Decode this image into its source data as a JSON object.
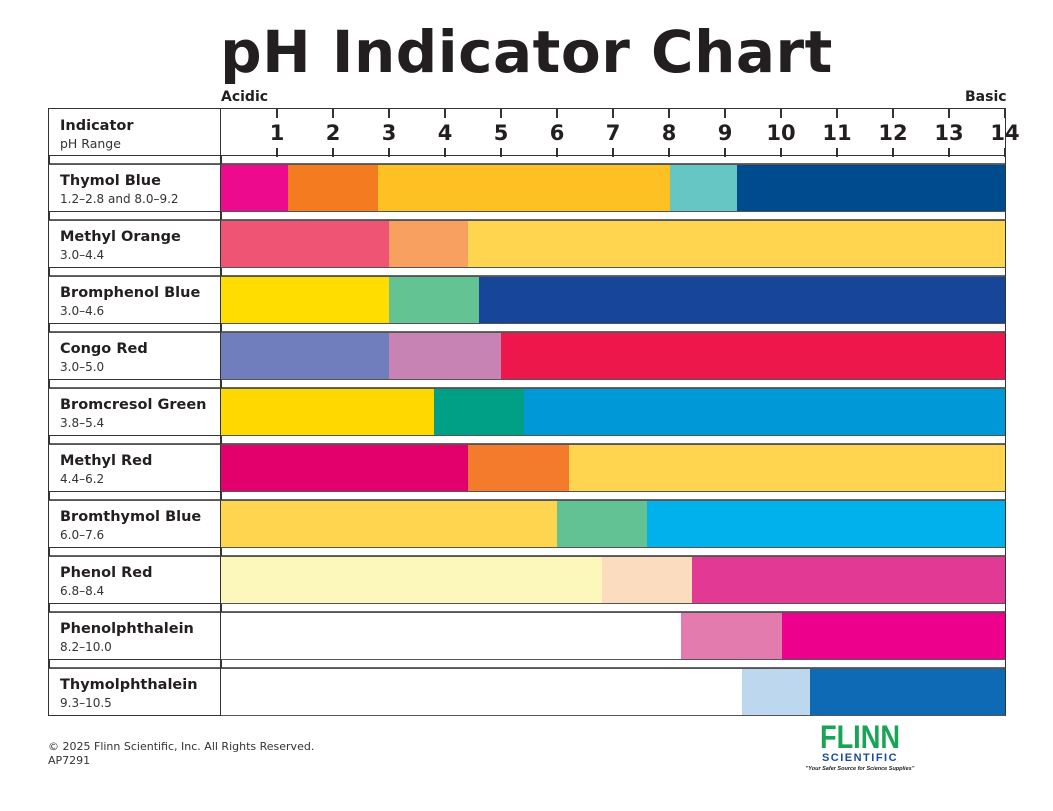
{
  "title": "pH Indicator Chart",
  "scale": {
    "left_label": "Acidic",
    "right_label": "Basic",
    "ticks": [
      "1",
      "2",
      "3",
      "4",
      "5",
      "6",
      "7",
      "8",
      "9",
      "10",
      "11",
      "12",
      "13",
      "14"
    ]
  },
  "header": {
    "indicator_label": "Indicator",
    "range_label": "pH Range"
  },
  "indicators": [
    {
      "name": "Thymol Blue",
      "range": "1.2–2.8 and 8.0–9.2"
    },
    {
      "name": "Methyl Orange",
      "range": "3.0–4.4"
    },
    {
      "name": "Bromphenol Blue",
      "range": "3.0–4.6"
    },
    {
      "name": "Congo Red",
      "range": "3.0–5.0"
    },
    {
      "name": "Bromcresol Green",
      "range": "3.8–5.4"
    },
    {
      "name": "Methyl Red",
      "range": "4.4–6.2"
    },
    {
      "name": "Bromthymol Blue",
      "range": "6.0–7.6"
    },
    {
      "name": "Phenol Red",
      "range": "6.8–8.4"
    },
    {
      "name": "Phenolphthalein",
      "range": "8.2–10.0"
    },
    {
      "name": "Thymolphthalein",
      "range": "9.3–10.5"
    }
  ],
  "footer": {
    "copyright": "© 2025 Flinn Scientific, Inc. All Rights Reserved.",
    "code": "AP7291"
  },
  "logo": {
    "name": "FLINN",
    "sub": "SCIENTIFIC",
    "tagline": "\"Your Safer Source for Science Supplies\""
  },
  "chart_data": {
    "type": "table",
    "title": "pH Indicator Chart",
    "xlabel": "pH",
    "xlim": [
      0,
      14
    ],
    "x_ticks": [
      1,
      2,
      3,
      4,
      5,
      6,
      7,
      8,
      9,
      10,
      11,
      12,
      13,
      14
    ],
    "axis_end_labels": {
      "left": "Acidic",
      "right": "Basic"
    },
    "rows": [
      {
        "indicator": "Thymol Blue",
        "range": "1.2–2.8 and 8.0–9.2",
        "segments": [
          {
            "from": 0,
            "to": 1.2,
            "color": "#EE0A8C"
          },
          {
            "from": 1.2,
            "to": 2.8,
            "color": "#F47B20"
          },
          {
            "from": 2.8,
            "to": 8.0,
            "color": "#FEC124"
          },
          {
            "from": 8.0,
            "to": 9.2,
            "color": "#66C6C4"
          },
          {
            "from": 9.2,
            "to": 14,
            "color": "#004B8D"
          }
        ]
      },
      {
        "indicator": "Methyl Orange",
        "range": "3.0–4.4",
        "segments": [
          {
            "from": 0,
            "to": 3.0,
            "color": "#EF5475"
          },
          {
            "from": 3.0,
            "to": 4.4,
            "color": "#F7A05F"
          },
          {
            "from": 4.4,
            "to": 14,
            "color": "#FFD54F"
          }
        ]
      },
      {
        "indicator": "Bromphenol Blue",
        "range": "3.0–4.6",
        "segments": [
          {
            "from": 0,
            "to": 3.0,
            "color": "#FFDD00"
          },
          {
            "from": 3.0,
            "to": 4.6,
            "color": "#63C392"
          },
          {
            "from": 4.6,
            "to": 14,
            "color": "#17459A"
          }
        ]
      },
      {
        "indicator": "Congo Red",
        "range": "3.0–5.0",
        "segments": [
          {
            "from": 0,
            "to": 3.0,
            "color": "#717EBD"
          },
          {
            "from": 3.0,
            "to": 5.0,
            "color": "#C883B5"
          },
          {
            "from": 5.0,
            "to": 14,
            "color": "#ED174B"
          }
        ]
      },
      {
        "indicator": "Bromcresol Green",
        "range": "3.8–5.4",
        "segments": [
          {
            "from": 0,
            "to": 3.8,
            "color": "#FFD800"
          },
          {
            "from": 3.8,
            "to": 5.4,
            "color": "#00A087"
          },
          {
            "from": 5.4,
            "to": 14,
            "color": "#0098D6"
          }
        ]
      },
      {
        "indicator": "Methyl Red",
        "range": "4.4–6.2",
        "segments": [
          {
            "from": 0,
            "to": 4.4,
            "color": "#E3006D"
          },
          {
            "from": 4.4,
            "to": 6.2,
            "color": "#F47B2B"
          },
          {
            "from": 6.2,
            "to": 14,
            "color": "#FFD54F"
          }
        ]
      },
      {
        "indicator": "Bromthymol Blue",
        "range": "6.0–7.6",
        "segments": [
          {
            "from": 0,
            "to": 6.0,
            "color": "#FFD54F"
          },
          {
            "from": 6.0,
            "to": 7.6,
            "color": "#62C294"
          },
          {
            "from": 7.6,
            "to": 14,
            "color": "#00B1EB"
          }
        ]
      },
      {
        "indicator": "Phenol Red",
        "range": "6.8–8.4",
        "segments": [
          {
            "from": 0,
            "to": 6.8,
            "color": "#FCF8BB"
          },
          {
            "from": 6.8,
            "to": 8.4,
            "color": "#FCDCBE"
          },
          {
            "from": 8.4,
            "to": 14,
            "color": "#E13994"
          }
        ]
      },
      {
        "indicator": "Phenolphthalein",
        "range": "8.2–10.0",
        "segments": [
          {
            "from": 0,
            "to": 8.2,
            "color": "#FFFFFF"
          },
          {
            "from": 8.2,
            "to": 10.0,
            "color": "#E37BAE"
          },
          {
            "from": 10.0,
            "to": 14,
            "color": "#EC008C"
          }
        ]
      },
      {
        "indicator": "Thymolphthalein",
        "range": "9.3–10.5",
        "segments": [
          {
            "from": 0,
            "to": 9.3,
            "color": "#FFFFFF"
          },
          {
            "from": 9.3,
            "to": 10.5,
            "color": "#BDD8EE"
          },
          {
            "from": 10.5,
            "to": 14,
            "color": "#0E6AB5"
          }
        ]
      }
    ]
  }
}
